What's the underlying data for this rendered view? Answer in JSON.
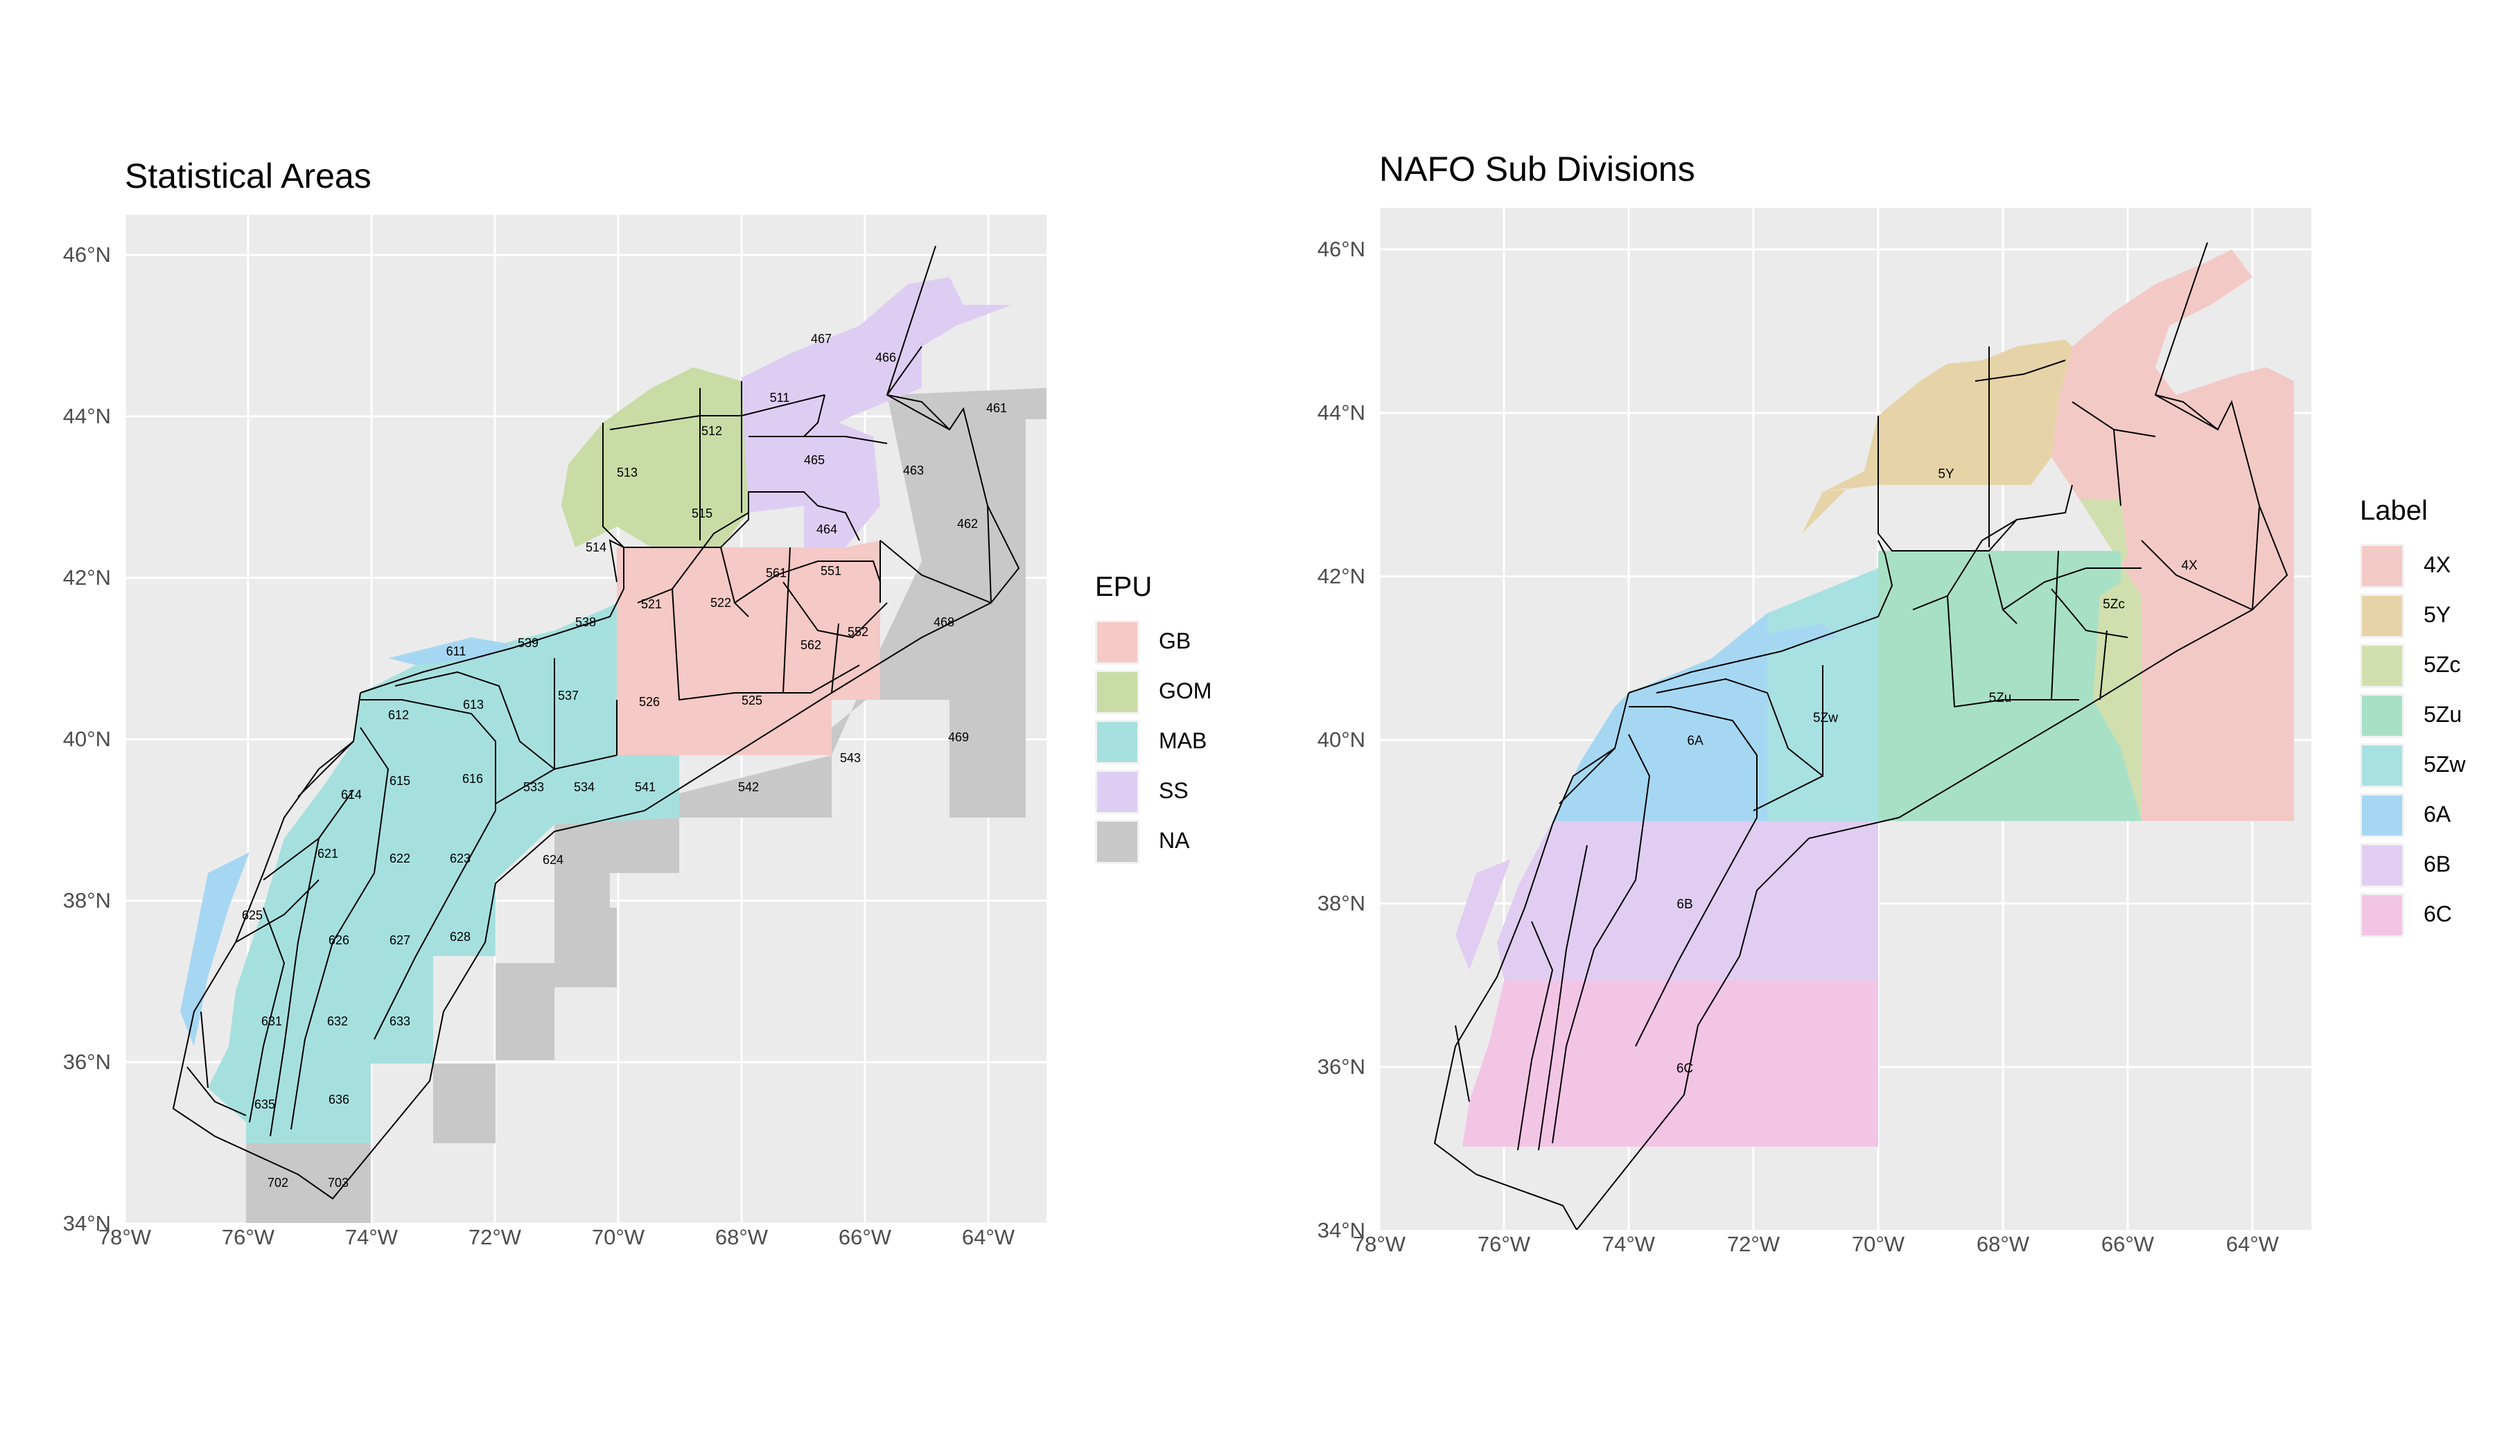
{
  "left_map": {
    "title": "Statistical Areas",
    "y_ticks": [
      "46°N",
      "44°N",
      "42°N",
      "40°N",
      "38°N",
      "36°N",
      "34°N"
    ],
    "x_ticks": [
      "78°W",
      "76°W",
      "74°W",
      "72°W",
      "70°W",
      "68°W",
      "66°W",
      "64°W"
    ],
    "legend": {
      "title": "EPU",
      "items": [
        {
          "label": "GB",
          "color": "#f5c9c5"
        },
        {
          "label": "GOM",
          "color": "#c9dca6"
        },
        {
          "label": "MAB",
          "color": "#a6e0de"
        },
        {
          "label": "SS",
          "color": "#decdf3"
        },
        {
          "label": "NA",
          "color": "#c8c8c8"
        }
      ]
    },
    "area_labels": [
      "467",
      "466",
      "511",
      "512",
      "461",
      "465",
      "463",
      "513",
      "515",
      "464",
      "462",
      "514",
      "561",
      "551",
      "521",
      "522",
      "538",
      "468",
      "552",
      "562",
      "611",
      "539",
      "537",
      "526",
      "525",
      "612",
      "613",
      "543",
      "469",
      "614",
      "615",
      "616",
      "533",
      "534",
      "541",
      "542",
      "621",
      "622",
      "623",
      "624",
      "625",
      "626",
      "627",
      "628",
      "631",
      "632",
      "633",
      "635",
      "636",
      "702",
      "703"
    ]
  },
  "right_map": {
    "title": "NAFO Sub Divisions",
    "y_ticks": [
      "46°N",
      "44°N",
      "42°N",
      "40°N",
      "38°N",
      "36°N",
      "34°N"
    ],
    "x_ticks": [
      "78°W",
      "76°W",
      "74°W",
      "72°W",
      "70°W",
      "68°W",
      "66°W",
      "64°W"
    ],
    "legend": {
      "title": "Label",
      "items": [
        {
          "label": "4X",
          "color": "#f3c9c6"
        },
        {
          "label": "5Y",
          "color": "#e6d4a8"
        },
        {
          "label": "5Zc",
          "color": "#d0dfad"
        },
        {
          "label": "5Zu",
          "color": "#a8e0c6"
        },
        {
          "label": "5Zw",
          "color": "#a8e1e2"
        },
        {
          "label": "6A",
          "color": "#a6d7f2"
        },
        {
          "label": "6B",
          "color": "#e1cdf1"
        },
        {
          "label": "6C",
          "color": "#f3c5e5"
        }
      ]
    },
    "division_labels": [
      "5Y",
      "4X",
      "5Zc",
      "5Zw",
      "5Zu",
      "6A",
      "6B",
      "6C"
    ]
  }
}
